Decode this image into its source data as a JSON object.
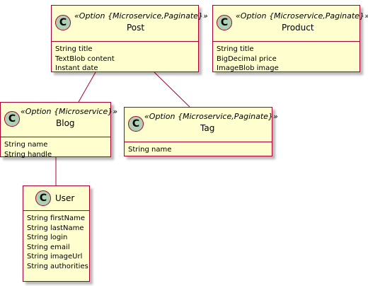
{
  "theme": {
    "class_fill": "#fefece",
    "class_border": "#a80036",
    "circle_fill": "#add1b2",
    "edge_color": "#a80036"
  },
  "classes": {
    "post": {
      "icon": "C",
      "stereotype": "«Option {Microservice,Paginate}»",
      "name": "Post",
      "attributes": [
        "String title",
        "TextBlob content",
        "Instant date"
      ]
    },
    "product": {
      "icon": "C",
      "stereotype": "«Option {Microservice,Paginate}»",
      "name": "Product",
      "attributes": [
        "String title",
        "BigDecimal price",
        "ImageBlob image"
      ]
    },
    "blog": {
      "icon": "C",
      "stereotype": "«Option {Microservice}»",
      "name": "Blog",
      "attributes": [
        "String name",
        "String handle"
      ]
    },
    "tag": {
      "icon": "C",
      "stereotype": "«Option {Microservice,Paginate}»",
      "name": "Tag",
      "attributes": [
        "String name"
      ]
    },
    "user": {
      "icon": "C",
      "stereotype": "",
      "name": "User",
      "attributes": [
        "String firstName",
        "String lastName",
        "String login",
        "String email",
        "String imageUrl",
        "String authorities"
      ]
    }
  },
  "associations": [
    {
      "from": "post",
      "to": "blog"
    },
    {
      "from": "post",
      "to": "tag"
    },
    {
      "from": "blog",
      "to": "user"
    }
  ]
}
